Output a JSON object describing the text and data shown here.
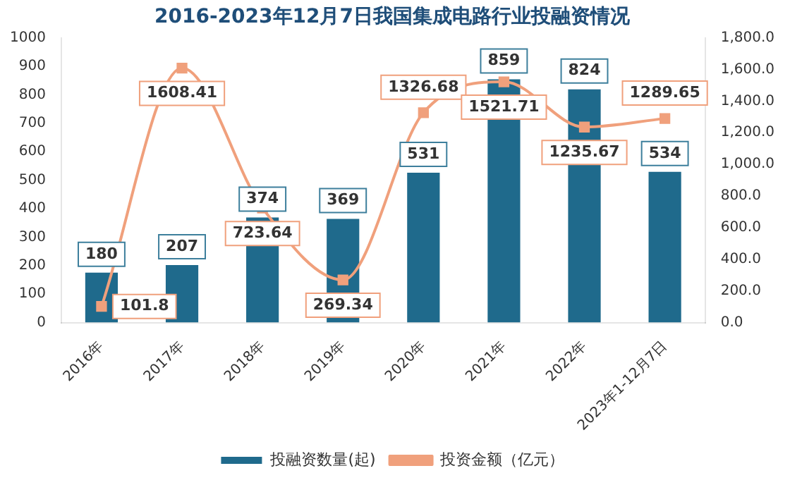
{
  "chart_data": {
    "type": "bar",
    "title": "2016-2023年12月7日我国集成电路行业投融资情况",
    "categories": [
      "2016年",
      "2017年",
      "2018年",
      "2019年",
      "2020年",
      "2021年",
      "2022年",
      "2023年1-12月7日"
    ],
    "series": [
      {
        "name": "投融资数量(起)",
        "color": "#1f6a8c",
        "values": [
          180,
          207,
          374,
          369,
          531,
          859,
          824,
          534
        ]
      },
      {
        "name": "投资金额（亿元）",
        "type": "line",
        "axis": "y2",
        "color": "#f0a07c",
        "marker": "square",
        "values": [
          101.8,
          1608.41,
          723.64,
          269.34,
          1326.68,
          1521.71,
          1235.67,
          1289.65
        ]
      }
    ],
    "ylim": [
      0,
      1000
    ],
    "yticks": [
      0,
      100,
      200,
      300,
      400,
      500,
      600,
      700,
      800,
      900,
      1000
    ],
    "y2lim": [
      0,
      1800
    ],
    "y2ticks": [
      {
        "value": 0,
        "label": "0.0"
      },
      {
        "value": 200,
        "label": "200.0"
      },
      {
        "value": 400,
        "label": "400.0"
      },
      {
        "value": 600,
        "label": "600.0"
      },
      {
        "value": 800,
        "label": "800.0"
      },
      {
        "value": 1000,
        "label": "1,000.0"
      },
      {
        "value": 1200,
        "label": "1,200.0"
      },
      {
        "value": 1400,
        "label": "1,400.0"
      },
      {
        "value": 1600,
        "label": "1,600.0"
      },
      {
        "value": 1800,
        "label": "1,800.0"
      }
    ],
    "data_labels": true,
    "legend": "bottom",
    "grid": false
  }
}
